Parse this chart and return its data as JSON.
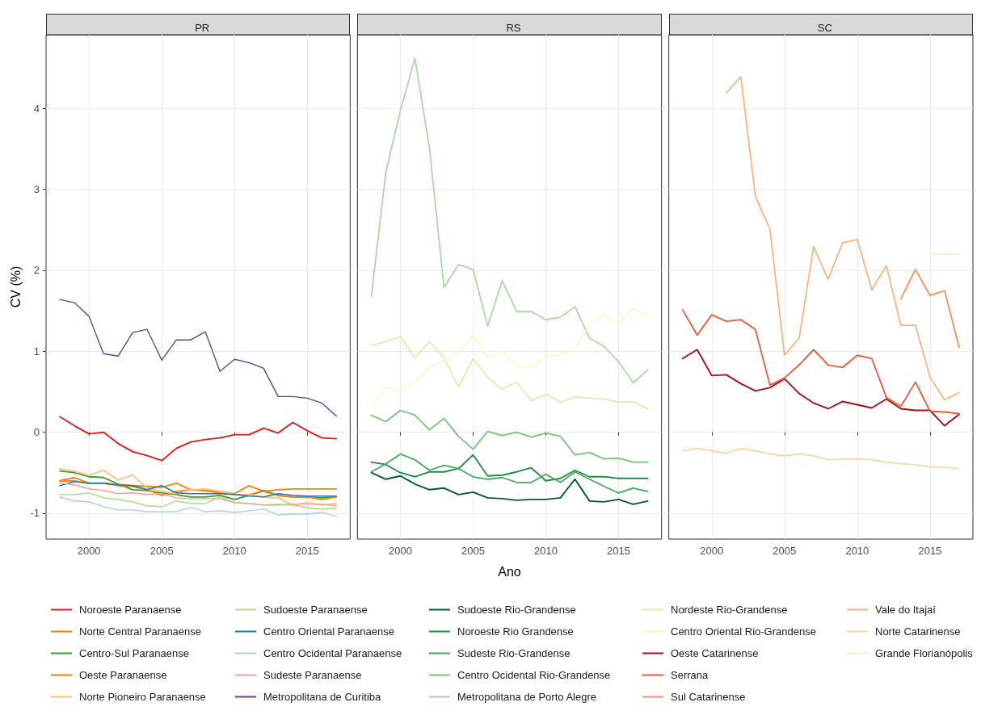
{
  "chart_data": [
    {
      "type": "line",
      "title": "PR",
      "ylabel": "CV (%)",
      "x": [
        1998,
        1999,
        2000,
        2001,
        2002,
        2003,
        2004,
        2005,
        2006,
        2007,
        2008,
        2009,
        2010,
        2011,
        2012,
        2013,
        2014,
        2015,
        2016,
        2017
      ],
      "xlim": [
        1997.05,
        2017.95
      ],
      "xticks": [
        2000,
        2005,
        2010,
        2015
      ],
      "ylim": [
        -1.32,
        4.91
      ],
      "yticks": [
        -1,
        0,
        1,
        2,
        3,
        4
      ],
      "grid": true,
      "legend": "bottom",
      "marker": "none",
      "line_style": "solid",
      "series": [
        {
          "name": "Noroeste Paranaense",
          "color": "#e31a1c",
          "values": [
            0.19,
            0.08,
            -0.02,
            0.0,
            -0.14,
            -0.24,
            -0.29,
            -0.35,
            -0.2,
            -0.12,
            -0.09,
            -0.07,
            -0.03,
            -0.03,
            0.05,
            -0.01,
            0.12,
            0.02,
            -0.07,
            -0.08
          ]
        },
        {
          "name": "Norte Central Paranaense",
          "color": "#ff7f00",
          "values": [
            -0.6,
            -0.56,
            -0.63,
            -0.63,
            -0.65,
            -0.66,
            -0.67,
            -0.68,
            -0.63,
            -0.71,
            -0.72,
            -0.73,
            -0.76,
            -0.66,
            -0.73,
            -0.71,
            -0.7,
            -0.7,
            -0.7,
            -0.7
          ]
        },
        {
          "name": "Centro-Sul Paranaense",
          "color": "#33a02c",
          "values": [
            -0.48,
            -0.5,
            -0.55,
            -0.56,
            -0.64,
            -0.71,
            -0.72,
            -0.75,
            -0.77,
            -0.8,
            -0.8,
            -0.78,
            -0.83,
            -0.78,
            -0.72,
            -0.78,
            -0.8,
            -0.8,
            -0.81,
            -0.8
          ]
        },
        {
          "name": "Oeste Paranaense",
          "color": "#ff7f00",
          "values": [
            -0.6,
            -0.6,
            -0.63,
            -0.63,
            -0.66,
            -0.67,
            -0.71,
            -0.78,
            -0.73,
            -0.71,
            -0.72,
            -0.75,
            -0.77,
            -0.77,
            -0.73,
            -0.78,
            -0.8,
            -0.8,
            -0.83,
            -0.8
          ]
        },
        {
          "name": "Norte Pioneiro Paranaense",
          "color": "#fdbf6f",
          "values": [
            -0.45,
            -0.48,
            -0.53,
            -0.47,
            -0.59,
            -0.53,
            -0.69,
            -0.73,
            -0.76,
            -0.71,
            -0.7,
            -0.73,
            -0.77,
            -0.77,
            -0.8,
            -0.81,
            -0.9,
            -0.87,
            -0.9,
            -0.88
          ]
        },
        {
          "name": "Sudoeste Paranaense",
          "color": "#b2df8a",
          "values": [
            -0.77,
            -0.77,
            -0.75,
            -0.81,
            -0.83,
            -0.86,
            -0.91,
            -0.92,
            -0.85,
            -0.88,
            -0.88,
            -0.8,
            -0.87,
            -0.88,
            -0.9,
            -0.89,
            -0.9,
            -0.93,
            -0.95,
            -0.94
          ]
        },
        {
          "name": "Centro Oriental Paranaense",
          "color": "#1f78b4",
          "values": [
            -0.66,
            -0.61,
            -0.63,
            -0.63,
            -0.65,
            -0.66,
            -0.71,
            -0.66,
            -0.75,
            -0.76,
            -0.76,
            -0.76,
            -0.77,
            -0.79,
            -0.8,
            -0.76,
            -0.78,
            -0.79,
            -0.79,
            -0.79
          ]
        },
        {
          "name": "Centro Ocidental Paranaense",
          "color": "#a6cee3",
          "values": [
            -0.8,
            -0.85,
            -0.86,
            -0.92,
            -0.96,
            -0.96,
            -0.98,
            -0.98,
            -0.98,
            -0.93,
            -0.98,
            -0.97,
            -0.99,
            -0.97,
            -0.95,
            -1.02,
            -1.01,
            -1.01,
            -0.99,
            -1.04
          ]
        },
        {
          "name": "Sudeste Paranaense",
          "color": "#fb9a99",
          "values": [
            -0.63,
            -0.65,
            -0.7,
            -0.72,
            -0.76,
            -0.75,
            -0.77,
            -0.76,
            -0.81,
            -0.82,
            -0.82,
            -0.82,
            -0.87,
            -0.88,
            -0.9,
            -0.9,
            -0.89,
            -0.89,
            -0.89,
            -0.91
          ]
        },
        {
          "name": "Metropolitana de Curitiba",
          "color": "#6a3d9a",
          "values": [
            1.64,
            1.6,
            1.43,
            0.97,
            0.94,
            1.23,
            1.27,
            0.89,
            1.14,
            1.14,
            1.24,
            0.75,
            0.9,
            0.86,
            0.79,
            0.44,
            0.44,
            0.42,
            0.36,
            0.2
          ]
        }
      ]
    },
    {
      "type": "line",
      "title": "RS",
      "xlabel": "Ano",
      "x": [
        1998,
        1999,
        2000,
        2001,
        2002,
        2003,
        2004,
        2005,
        2006,
        2007,
        2008,
        2009,
        2010,
        2011,
        2012,
        2013,
        2014,
        2015,
        2016,
        2017
      ],
      "xlim": [
        1997.05,
        2017.95
      ],
      "xticks": [
        2000,
        2005,
        2010,
        2015
      ],
      "ylim": [
        -1.32,
        4.91
      ],
      "yticks": [
        -1,
        0,
        1,
        2,
        3,
        4
      ],
      "grid": true,
      "legend": "bottom",
      "marker": "none",
      "line_style": "solid",
      "tick_labels": "x",
      "series": [
        {
          "name": "Sudoeste Rio-Grandense",
          "color": "#005a32",
          "values": [
            -0.5,
            -0.58,
            -0.54,
            -0.64,
            -0.71,
            -0.69,
            -0.77,
            -0.74,
            -0.81,
            -0.82,
            -0.84,
            -0.83,
            -0.83,
            -0.81,
            -0.58,
            -0.85,
            -0.86,
            -0.83,
            -0.89,
            -0.85
          ]
        },
        {
          "name": "Noroeste Rio Grandense",
          "color": "#238b45",
          "values": [
            -0.37,
            -0.4,
            -0.5,
            -0.55,
            -0.49,
            -0.49,
            -0.45,
            -0.28,
            -0.54,
            -0.53,
            -0.49,
            -0.44,
            -0.6,
            -0.57,
            -0.47,
            -0.55,
            -0.55,
            -0.57,
            -0.57,
            -0.57
          ]
        },
        {
          "name": "Sudeste Rio-Grandense",
          "color": "#41ab5d",
          "values": [
            -0.49,
            -0.39,
            -0.27,
            -0.34,
            -0.47,
            -0.41,
            -0.45,
            -0.55,
            -0.58,
            -0.56,
            -0.62,
            -0.62,
            -0.52,
            -0.62,
            -0.49,
            -0.58,
            -0.67,
            -0.75,
            -0.69,
            -0.73
          ]
        },
        {
          "name": "Centro Ocidental Rio-Grandense",
          "color": "#74c476",
          "values": [
            0.21,
            0.13,
            0.27,
            0.21,
            0.03,
            0.17,
            -0.05,
            -0.21,
            0.01,
            -0.04,
            0.0,
            -0.06,
            -0.01,
            -0.05,
            -0.28,
            -0.25,
            -0.33,
            -0.32,
            -0.37,
            -0.37
          ]
        },
        {
          "name": "Metropolitana de Porto Alegre",
          "color": "#a1d99b",
          "values": [
            1.67,
            3.21,
            3.97,
            4.62,
            3.51,
            1.79,
            2.07,
            2.01,
            1.31,
            1.87,
            1.49,
            1.49,
            1.39,
            1.42,
            1.55,
            1.16,
            1.06,
            0.87,
            0.61,
            0.77
          ]
        },
        {
          "name": "Nordeste Rio-Grandense",
          "color": "#d9f0a3",
          "values": [
            1.07,
            1.12,
            1.18,
            0.92,
            1.12,
            0.92,
            0.56,
            0.91,
            0.68,
            0.53,
            0.62,
            0.39,
            0.47,
            0.37,
            0.44,
            0.42,
            0.41,
            0.37,
            0.38,
            0.29
          ]
        },
        {
          "name": "Centro Oriental Rio-Grandense",
          "color": "#f7fcb9",
          "values": [
            0.33,
            0.55,
            0.51,
            0.63,
            0.8,
            0.88,
            0.99,
            1.21,
            0.92,
            1.0,
            0.82,
            0.8,
            0.93,
            0.96,
            1.03,
            1.33,
            1.45,
            1.35,
            1.53,
            1.42
          ]
        }
      ]
    },
    {
      "type": "line",
      "title": "SC",
      "x": [
        1998,
        1999,
        2000,
        2001,
        2002,
        2003,
        2004,
        2005,
        2006,
        2007,
        2008,
        2009,
        2010,
        2011,
        2012,
        2013,
        2014,
        2015,
        2016,
        2017
      ],
      "xlim": [
        1997.05,
        2017.95
      ],
      "xticks": [
        2000,
        2005,
        2010,
        2015
      ],
      "ylim": [
        -1.32,
        4.91
      ],
      "yticks": [
        -1,
        0,
        1,
        2,
        3,
        4
      ],
      "grid": true,
      "legend": "bottom",
      "marker": "none",
      "line_style": "solid",
      "tick_labels": "x",
      "series": [
        {
          "name": "Oeste Catarinense",
          "color": "#a50f15",
          "values": [
            0.91,
            1.02,
            0.7,
            0.71,
            0.6,
            0.51,
            0.55,
            0.66,
            0.48,
            0.36,
            0.29,
            0.38,
            0.34,
            0.3,
            0.41,
            0.29,
            0.27,
            0.27,
            0.08,
            0.22
          ]
        },
        {
          "name": "Serrana",
          "color": "#ef5a3c",
          "values": [
            1.51,
            1.2,
            1.45,
            1.37,
            1.39,
            1.27,
            0.58,
            0.67,
            0.83,
            1.02,
            0.83,
            0.8,
            0.95,
            0.91,
            0.43,
            0.32,
            0.62,
            0.26,
            0.25,
            0.23
          ]
        },
        {
          "name": "Sul Catarinense",
          "color": "#fc8d59",
          "values": [
            null,
            null,
            null,
            null,
            null,
            null,
            null,
            null,
            null,
            null,
            null,
            null,
            null,
            null,
            null,
            1.65,
            2.01,
            1.69,
            1.75,
            1.05
          ]
        },
        {
          "name": "Vale do Itajaí",
          "color": "#fdb07a",
          "values": [
            null,
            null,
            null,
            4.19,
            4.39,
            2.91,
            2.51,
            0.95,
            1.16,
            2.29,
            1.89,
            2.34,
            2.38,
            1.76,
            2.06,
            1.32,
            1.32,
            0.68,
            0.4,
            0.49
          ]
        },
        {
          "name": "Norte Catarinense",
          "color": "#fdd49e",
          "values": [
            -0.23,
            -0.2,
            -0.23,
            -0.26,
            -0.2,
            -0.23,
            -0.27,
            -0.29,
            -0.27,
            -0.29,
            -0.34,
            -0.33,
            -0.33,
            -0.34,
            -0.37,
            -0.39,
            -0.4,
            -0.43,
            -0.43,
            -0.45
          ]
        },
        {
          "name": "Grande Florianópolis",
          "color": "#fee8c8",
          "values": [
            null,
            null,
            null,
            null,
            null,
            null,
            null,
            null,
            null,
            null,
            null,
            null,
            null,
            null,
            null,
            null,
            null,
            2.2,
            2.2,
            2.2
          ]
        }
      ]
    }
  ]
}
